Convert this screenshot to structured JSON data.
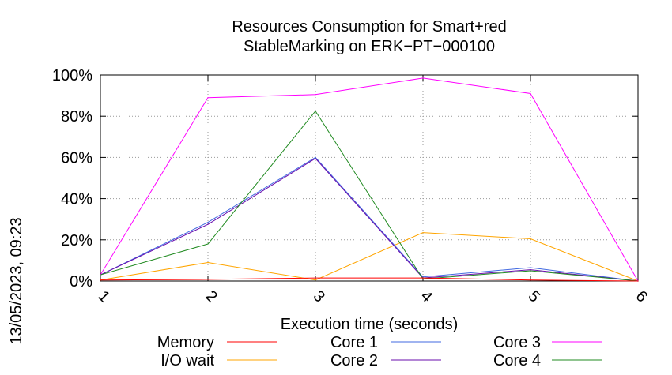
{
  "chart_data": {
    "type": "line",
    "title_line1": "Resources Consumption for Smart+red",
    "title_line2": "StableMarking on ERK−PT−000100",
    "xlabel": "Execution time (seconds)",
    "side_label": "13/05/2023, 09:23",
    "x": [
      1,
      2,
      3,
      4,
      5,
      6
    ],
    "x_ticks": [
      "1",
      "2",
      "3",
      "4",
      "5",
      "6"
    ],
    "xlim": [
      1,
      6
    ],
    "ylim": [
      0,
      100
    ],
    "y_ticks": [
      0,
      20,
      40,
      60,
      80,
      100
    ],
    "y_tick_labels": [
      "0%",
      "20%",
      "40%",
      "60%",
      "80%",
      "100%"
    ],
    "grid": true,
    "legend_position": "bottom",
    "series": [
      {
        "name": "Memory",
        "color": "#ff0000",
        "values": [
          0.5,
          0.8,
          1.5,
          1.5,
          0.5,
          0
        ]
      },
      {
        "name": "I/O wait",
        "color": "#ffa500",
        "values": [
          0.5,
          9,
          0.5,
          23.5,
          20.5,
          0
        ]
      },
      {
        "name": "Core 1",
        "color": "#4169e1",
        "values": [
          3,
          28.5,
          60,
          2,
          6.5,
          0
        ]
      },
      {
        "name": "Core 2",
        "color": "#6a0dad",
        "values": [
          3,
          27.5,
          59.5,
          1.5,
          5.5,
          0
        ]
      },
      {
        "name": "Core 3",
        "color": "#ff00ff",
        "values": [
          3,
          89,
          90.5,
          98.5,
          91,
          0
        ]
      },
      {
        "name": "Core 4",
        "color": "#228b22",
        "values": [
          3,
          18,
          82.5,
          1,
          5,
          0
        ]
      }
    ]
  }
}
